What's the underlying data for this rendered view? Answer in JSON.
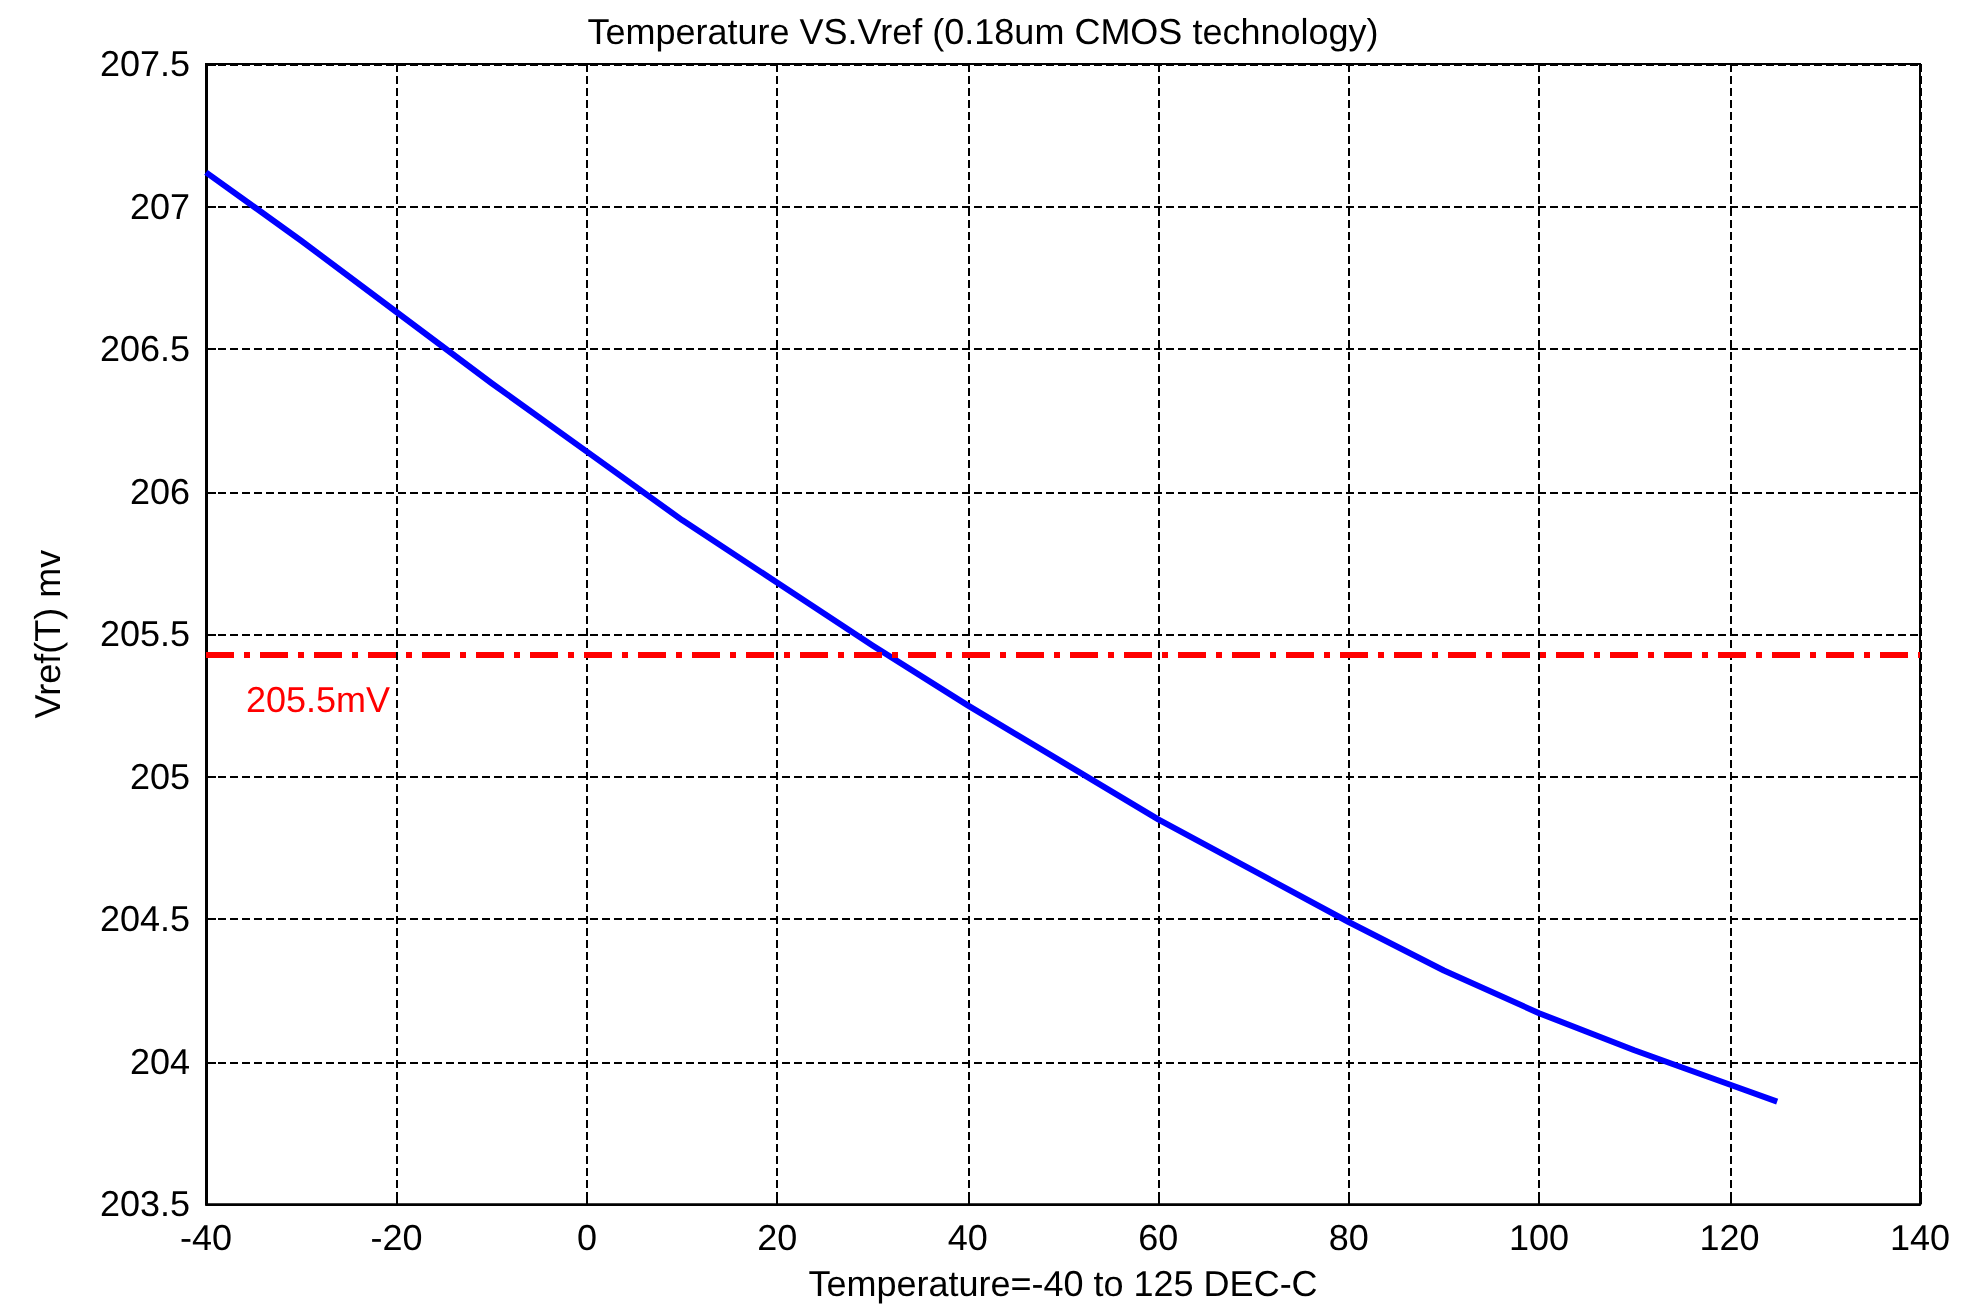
{
  "chart_data": {
    "type": "line",
    "title": "Temperature VS.Vref (0.18um CMOS technology)",
    "xlabel": "Temperature=-40 to 125 DEC-C",
    "ylabel": "Vref(T) mv",
    "x": [
      -40,
      -30,
      -20,
      -10,
      0,
      10,
      20,
      30,
      40,
      50,
      60,
      70,
      80,
      90,
      100,
      110,
      120,
      125
    ],
    "series": [
      {
        "color": "#0000ff",
        "values": [
          207.12,
          206.88,
          206.63,
          206.38,
          206.14,
          205.9,
          205.68,
          205.46,
          205.25,
          205.05,
          204.85,
          204.67,
          204.49,
          204.32,
          204.17,
          204.04,
          203.92,
          203.86
        ]
      }
    ],
    "xlim": [
      -40,
      140
    ],
    "xticks": [
      -40,
      -20,
      0,
      20,
      40,
      60,
      80,
      100,
      120,
      140
    ],
    "ylim": [
      203.5,
      207.5
    ],
    "yticks": [
      203.5,
      204,
      204.5,
      205,
      205.5,
      206,
      206.5,
      207,
      207.5
    ],
    "grid": true,
    "marker": "none",
    "line_style": "solid",
    "ref_lines": [
      {
        "axis": "y",
        "value": 205.43,
        "label": "205.5mV",
        "color": "#ff0000",
        "line_style": "dashed"
      }
    ]
  }
}
